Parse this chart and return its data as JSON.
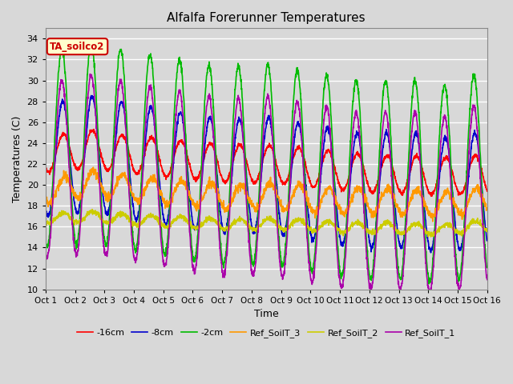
{
  "title": "Alfalfa Forerunner Temperatures",
  "xlabel": "Time",
  "ylabel": "Temperatures (C)",
  "ylim": [
    10,
    35
  ],
  "yticks": [
    10,
    12,
    14,
    16,
    18,
    20,
    22,
    24,
    26,
    28,
    30,
    32,
    34
  ],
  "xlim": [
    0,
    15
  ],
  "xtick_labels": [
    "Oct 1",
    "Oct 2",
    "Oct 3",
    "Oct 4",
    "Oct 5",
    "Oct 6",
    "Oct 7",
    "Oct 8",
    "Oct 9",
    "Oct 10",
    "Oct 11",
    "Oct 12",
    "Oct 13",
    "Oct 14",
    "Oct 15",
    "Oct 16"
  ],
  "xtick_positions": [
    0,
    1,
    2,
    3,
    4,
    5,
    6,
    7,
    8,
    9,
    10,
    11,
    12,
    13,
    14,
    15
  ],
  "annotation_text": "TA_soilco2",
  "annotation_bg": "#ffffcc",
  "annotation_edge": "#cc0000",
  "annotation_color": "#cc0000",
  "fig_bg_color": "#d8d8d8",
  "plot_bg_color": "#d8d8d8",
  "grid_color": "#ffffff",
  "series": {
    "neg16cm": {
      "color": "#ff0000",
      "label": "-16cm",
      "lw": 1.2
    },
    "neg8cm": {
      "color": "#0000cc",
      "label": "-8cm",
      "lw": 1.2
    },
    "neg2cm": {
      "color": "#00bb00",
      "label": "-2cm",
      "lw": 1.2
    },
    "ref3": {
      "color": "#ff9900",
      "label": "Ref_SoilT_3",
      "lw": 1.2
    },
    "ref2": {
      "color": "#cccc00",
      "label": "Ref_SoilT_2",
      "lw": 1.2
    },
    "ref1": {
      "color": "#aa00aa",
      "label": "Ref_SoilT_1",
      "lw": 1.2
    }
  },
  "legend_ncol": 6
}
